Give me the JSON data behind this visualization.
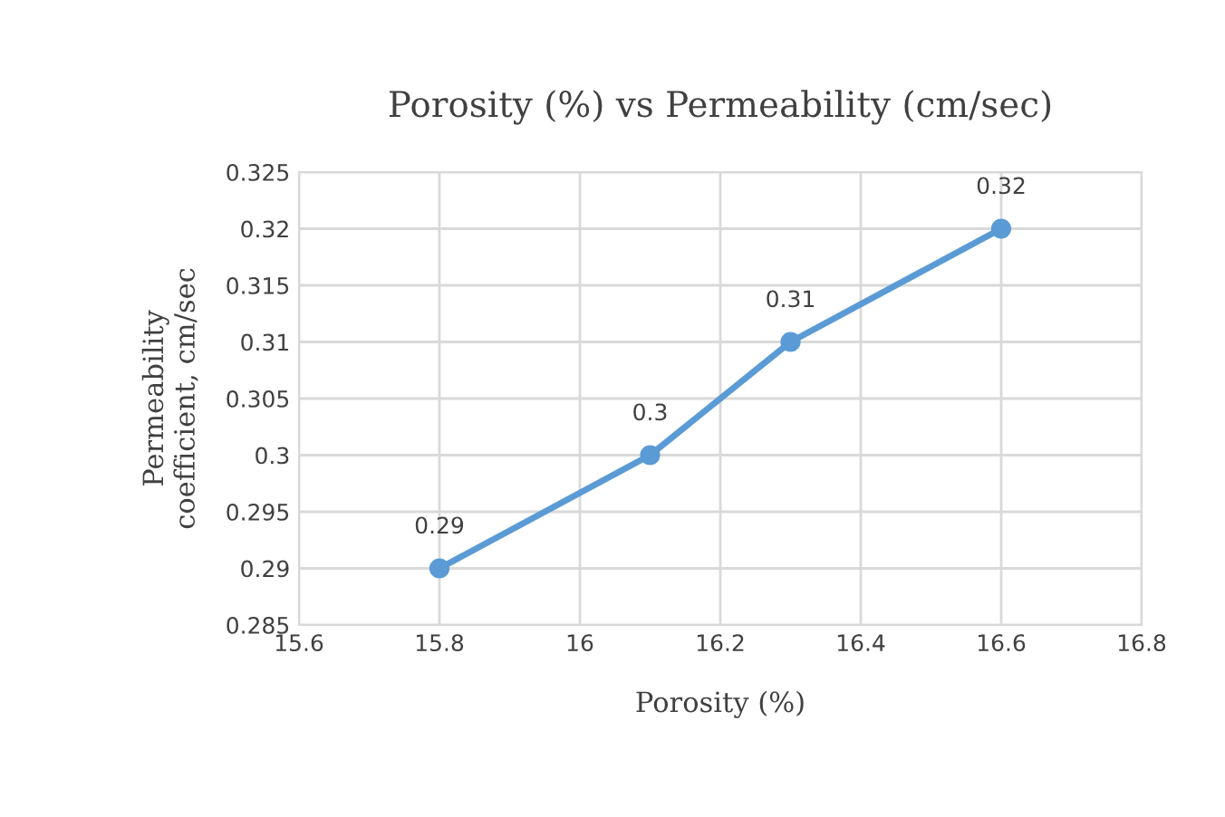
{
  "chart_data": {
    "type": "line",
    "title": "Porosity (%) vs Permeability (cm/sec)",
    "xlabel": "Porosity (%)",
    "ylabel": "Permeability\ncoefficient, cm/sec",
    "x": [
      15.8,
      16.1,
      16.3,
      16.6
    ],
    "series": [
      {
        "color": "#5b9bd5",
        "values": [
          0.29,
          0.3,
          0.31,
          0.32
        ]
      }
    ],
    "xlim": [
      15.6,
      16.8
    ],
    "xticks": [
      15.6,
      15.8,
      16,
      16.2,
      16.4,
      16.6,
      16.8
    ],
    "ylim": [
      0.285,
      0.325
    ],
    "yticks": [
      0.285,
      0.29,
      0.295,
      0.3,
      0.305,
      0.31,
      0.315,
      0.32,
      0.325
    ],
    "grid": true,
    "marker": "circle",
    "line_style": "solid",
    "data_labels": true
  }
}
